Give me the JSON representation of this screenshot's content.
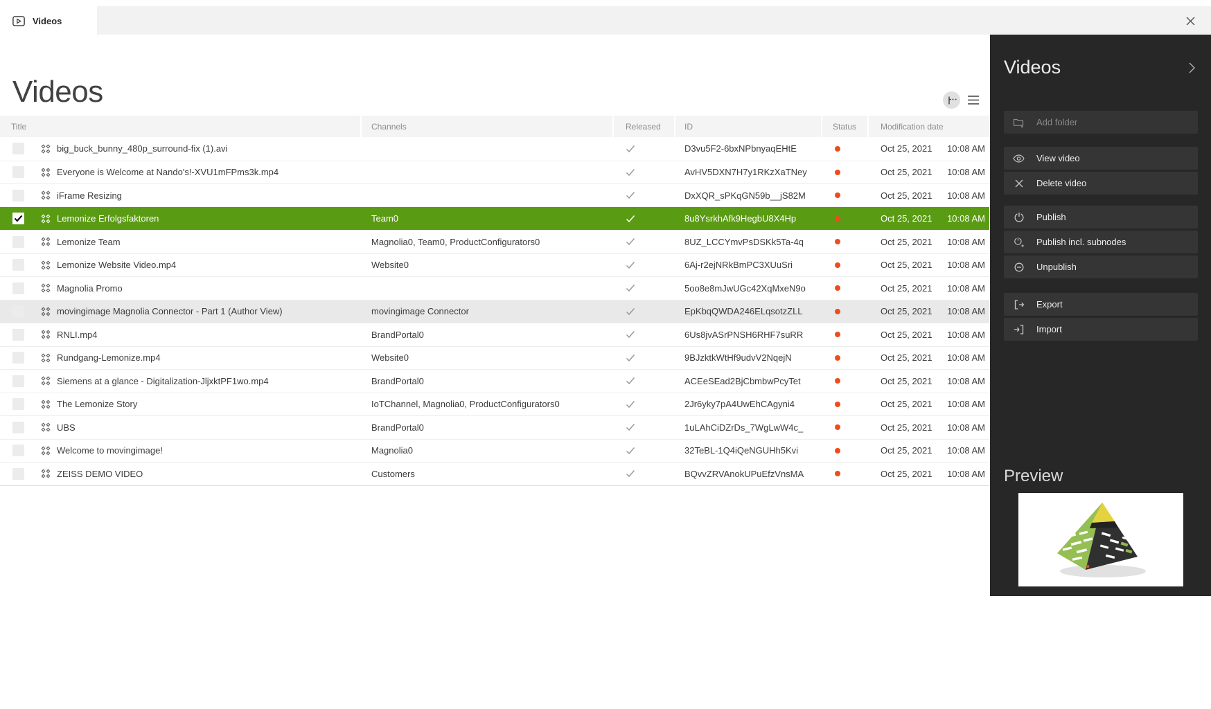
{
  "window": {
    "tab_label": "Videos",
    "close_icon": "close-icon",
    "tab_icon": "video-play-icon"
  },
  "main": {
    "title": "Videos",
    "view_toggles": [
      {
        "name": "tree-view",
        "icon": "tree-icon",
        "active": true
      },
      {
        "name": "list-view",
        "icon": "list-icon",
        "active": false
      }
    ]
  },
  "table": {
    "columns": [
      "Title",
      "Channels",
      "Released",
      "ID",
      "Status",
      "Modification date"
    ],
    "rows": [
      {
        "title": "big_buck_bunny_480p_surround-fix (1).avi",
        "channels": "",
        "released": true,
        "id": "D3vu5F2-6bxNPbnyaqEHtE",
        "status": "red",
        "date": "Oct 25, 2021",
        "time": "10:08 AM",
        "selected": false,
        "highlighted": false
      },
      {
        "title": "Everyone is Welcome at Nando's!-XVU1mFPms3k.mp4",
        "channels": "",
        "released": true,
        "id": "AvHV5DXN7H7y1RKzXaTNey",
        "status": "red",
        "date": "Oct 25, 2021",
        "time": "10:08 AM",
        "selected": false,
        "highlighted": false
      },
      {
        "title": "iFrame Resizing",
        "channels": "",
        "released": true,
        "id": "DxXQR_sPKqGN59b__jS82M",
        "status": "red",
        "date": "Oct 25, 2021",
        "time": "10:08 AM",
        "selected": false,
        "highlighted": false
      },
      {
        "title": "Lemonize Erfolgsfaktoren",
        "channels": "Team0",
        "released": true,
        "id": "8u8YsrkhAfk9HegbU8X4Hp",
        "status": "red",
        "date": "Oct 25, 2021",
        "time": "10:08 AM",
        "selected": true,
        "highlighted": false
      },
      {
        "title": "Lemonize Team",
        "channels": "Magnolia0, Team0, ProductConfigurators0",
        "released": true,
        "id": "8UZ_LCCYmvPsDSKk5Ta-4q",
        "status": "red",
        "date": "Oct 25, 2021",
        "time": "10:08 AM",
        "selected": false,
        "highlighted": false
      },
      {
        "title": "Lemonize Website Video.mp4",
        "channels": "Website0",
        "released": true,
        "id": "6Aj-r2ejNRkBmPC3XUuSri",
        "status": "red",
        "date": "Oct 25, 2021",
        "time": "10:08 AM",
        "selected": false,
        "highlighted": false
      },
      {
        "title": "Magnolia Promo",
        "channels": "",
        "released": true,
        "id": "5oo8e8mJwUGc42XqMxeN9o",
        "status": "red",
        "date": "Oct 25, 2021",
        "time": "10:08 AM",
        "selected": false,
        "highlighted": false
      },
      {
        "title": "movingimage Magnolia Connector - Part 1 (Author View)",
        "channels": "movingimage Connector",
        "released": true,
        "id": "EpKbqQWDA246ELqsotzZLL",
        "status": "red",
        "date": "Oct 25, 2021",
        "time": "10:08 AM",
        "selected": false,
        "highlighted": true
      },
      {
        "title": "RNLI.mp4",
        "channels": "BrandPortal0",
        "released": true,
        "id": "6Us8jvASrPNSH6RHF7suRR",
        "status": "red",
        "date": "Oct 25, 2021",
        "time": "10:08 AM",
        "selected": false,
        "highlighted": false
      },
      {
        "title": "Rundgang-Lemonize.mp4",
        "channels": "Website0",
        "released": true,
        "id": "9BJzktkWtHf9udvV2NqejN",
        "status": "red",
        "date": "Oct 25, 2021",
        "time": "10:08 AM",
        "selected": false,
        "highlighted": false
      },
      {
        "title": "Siemens at a glance - Digitalization-JljxktPF1wo.mp4",
        "channels": "BrandPortal0",
        "released": true,
        "id": "ACEeSEad2BjCbmbwPcyTet",
        "status": "red",
        "date": "Oct 25, 2021",
        "time": "10:08 AM",
        "selected": false,
        "highlighted": false
      },
      {
        "title": "The Lemonize Story",
        "channels": "IoTChannel, Magnolia0, ProductConfigurators0",
        "released": true,
        "id": "2Jr6yky7pA4UwEhCAgyni4",
        "status": "red",
        "date": "Oct 25, 2021",
        "time": "10:08 AM",
        "selected": false,
        "highlighted": false
      },
      {
        "title": "UBS",
        "channels": "BrandPortal0",
        "released": true,
        "id": "1uLAhCiDZrDs_7WgLwW4c_",
        "status": "red",
        "date": "Oct 25, 2021",
        "time": "10:08 AM",
        "selected": false,
        "highlighted": false
      },
      {
        "title": "Welcome to movingimage!",
        "channels": "Magnolia0",
        "released": true,
        "id": "32TeBL-1Q4iQeNGUHh5Kvi",
        "status": "red",
        "date": "Oct 25, 2021",
        "time": "10:08 AM",
        "selected": false,
        "highlighted": false
      },
      {
        "title": "ZEISS DEMO VIDEO",
        "channels": "Customers",
        "released": true,
        "id": "BQvvZRVAnokUPuEfzVnsMA",
        "status": "red",
        "date": "Oct 25, 2021",
        "time": "10:08 AM",
        "selected": false,
        "highlighted": false
      }
    ]
  },
  "sidebar": {
    "title": "Videos",
    "collapse_icon": "chevron-right-icon",
    "add_folder_placeholder": "Add folder",
    "action_groups": [
      {
        "items": [
          {
            "icon": "eye",
            "label": "View video"
          },
          {
            "icon": "x",
            "label": "Delete video"
          }
        ]
      },
      {
        "items": [
          {
            "icon": "publish",
            "label": "Publish"
          },
          {
            "icon": "publish-plus",
            "label": "Publish incl. subnodes"
          },
          {
            "icon": "unpublish",
            "label": "Unpublish"
          }
        ]
      },
      {
        "items": [
          {
            "icon": "export",
            "label": "Export"
          },
          {
            "icon": "import",
            "label": "Import"
          }
        ]
      }
    ],
    "preview": {
      "label": "Preview",
      "thumbnail": "pyramid-model"
    }
  },
  "colors": {
    "selection_green": "#5a9b14",
    "status_dot_red": "#ee4b1f",
    "sidebar_bg": "#272727",
    "sidebar_button_bg": "#353535",
    "header_bg": "#f4f4f4",
    "highlighted_row_bg": "#e9e9e9",
    "tabbar_bg": "#f2f2f2"
  }
}
